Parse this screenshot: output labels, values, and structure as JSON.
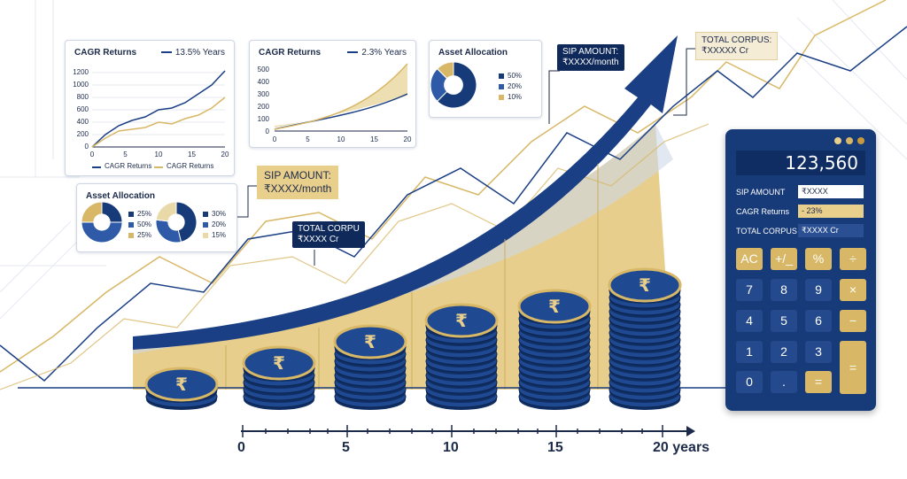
{
  "colors": {
    "navy": "#173a78",
    "dark_navy": "#0f2a5a",
    "gold": "#d8b866",
    "light_gold": "#e9cf8c"
  },
  "card1": {
    "title": "CAGR Returns",
    "legend": "13.5% Years",
    "y_ticks": [
      "1200",
      "1000",
      "800",
      "600",
      "400",
      "200",
      "0"
    ],
    "x_ticks": [
      "0",
      "5",
      "10",
      "15",
      "20"
    ],
    "legend_a": "CAGR Returns",
    "legend_b": "CAGR Returns"
  },
  "card2": {
    "title": "CAGR Returns",
    "legend": "2.3% Years",
    "y_ticks": [
      "500",
      "400",
      "300",
      "200",
      "100",
      "0"
    ],
    "x_ticks": [
      "0",
      "5",
      "10",
      "15",
      "20"
    ]
  },
  "card3": {
    "title": "Asset Allocation",
    "items": [
      {
        "pct": "50%",
        "value": 0.5,
        "color": "#173a78"
      },
      {
        "pct": "20%",
        "value": 0.2,
        "color": "#2e5aa8"
      },
      {
        "pct": "10%",
        "value": 0.1,
        "color": "#d8b866"
      }
    ]
  },
  "card4": {
    "title": "Asset Allocation",
    "pie_a": [
      {
        "pct": "25%",
        "value": 0.25,
        "color": "#173a78"
      },
      {
        "pct": "50%",
        "value": 0.5,
        "color": "#2e5aa8"
      },
      {
        "pct": "25%",
        "value": 0.25,
        "color": "#d8b866"
      }
    ],
    "pie_b": [
      {
        "pct": "30%",
        "value": 0.3,
        "color": "#173a78"
      },
      {
        "pct": "20%",
        "value": 0.2,
        "color": "#2e5aa8"
      },
      {
        "pct": "15%",
        "value": 0.15,
        "color": "#e9d9a8"
      }
    ]
  },
  "callouts": {
    "sip_top_label": "SIP AMOUNT:",
    "sip_top_value": "₹XXXX/month",
    "sip_mid_label": "SIP AMOUNT:",
    "sip_mid_value": "₹XXXX/month",
    "total_top_label": "TOTAL CORPUS:",
    "total_top_value": "₹XXXXX Cr",
    "total_mid_label": "TOTAL CORPU",
    "total_mid_value": "₹XXXX Cr"
  },
  "coins": {
    "symbol": "₹",
    "stacks": [
      2,
      5,
      8,
      11,
      13,
      16
    ]
  },
  "axis": {
    "ticks": [
      "0",
      "5",
      "10",
      "15",
      "20 years"
    ]
  },
  "calculator": {
    "display": "123,560",
    "rows": [
      {
        "label": "SIP AMOUNT",
        "value": "₹XXXX"
      },
      {
        "label": "CAGR Returns",
        "value": "- 23%"
      },
      {
        "label": "TOTAL CORPUS",
        "value": "₹XXXX Cr"
      }
    ],
    "keys": [
      "AC",
      "+/_",
      "%",
      "÷",
      "7",
      "8",
      "9",
      "×",
      "4",
      "5",
      "6",
      "−",
      "1",
      "2",
      "3",
      "0",
      ".",
      "=",
      "="
    ]
  }
}
